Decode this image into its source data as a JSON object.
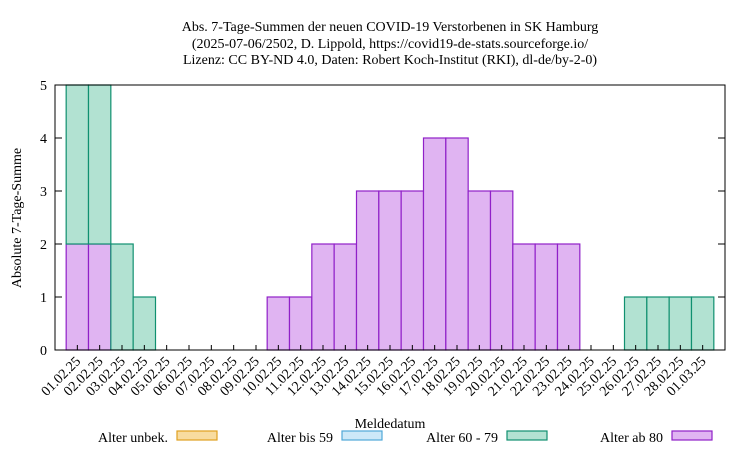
{
  "chart_data": {
    "type": "stacked-bar",
    "title": [
      "Abs. 7-Tage-Summen der neuen COVID-19 Verstorbenen in SK Hamburg",
      "(2025-07-06/2502, D. Lippold, https://covid19-de-stats.sourceforge.io/",
      "Lizenz: CC BY-ND 4.0, Daten: Robert Koch-Institut (RKI), dl-de/by-2-0)"
    ],
    "x_label": "Meldedatum",
    "y_label": "Absolute 7-Tage-Summe",
    "categories": [
      "01.02.25",
      "02.02.25",
      "03.02.25",
      "04.02.25",
      "05.02.25",
      "06.02.25",
      "07.02.25",
      "08.02.25",
      "09.02.25",
      "10.02.25",
      "11.02.25",
      "12.02.25",
      "13.02.25",
      "14.02.25",
      "15.02.25",
      "16.02.25",
      "17.02.25",
      "18.02.25",
      "19.02.25",
      "20.02.25",
      "21.02.25",
      "22.02.25",
      "23.02.25",
      "24.02.25",
      "25.02.25",
      "26.02.25",
      "27.02.25",
      "28.02.25",
      "01.03.25"
    ],
    "series": [
      {
        "name": "Alter ab 80",
        "color": "#e0b4f2",
        "edge": "#9020c8",
        "values": [
          2,
          2,
          0,
          0,
          0,
          0,
          0,
          0,
          0,
          1,
          1,
          2,
          2,
          3,
          3,
          3,
          4,
          4,
          3,
          3,
          2,
          2,
          2,
          0,
          0,
          0,
          0,
          0,
          0
        ]
      },
      {
        "name": "Alter 60 - 79",
        "color": "#b2e2d2",
        "edge": "#109070",
        "values": [
          3,
          3,
          2,
          1,
          0,
          0,
          0,
          0,
          0,
          0,
          0,
          0,
          0,
          0,
          0,
          0,
          0,
          0,
          0,
          0,
          0,
          0,
          0,
          0,
          0,
          1,
          1,
          1,
          1
        ]
      },
      {
        "name": "Alter bis 59",
        "color": "#cce8f8",
        "edge": "#50a8d8",
        "values": [
          0,
          0,
          0,
          0,
          0,
          0,
          0,
          0,
          0,
          0,
          0,
          0,
          0,
          0,
          0,
          0,
          0,
          0,
          0,
          0,
          0,
          0,
          0,
          0,
          0,
          0,
          0,
          0,
          0
        ]
      },
      {
        "name": "Alter unbek.",
        "color": "#f8dca0",
        "edge": "#e0a020",
        "values": [
          0,
          0,
          0,
          0,
          0,
          0,
          0,
          0,
          0,
          0,
          0,
          0,
          0,
          0,
          0,
          0,
          0,
          0,
          0,
          0,
          0,
          0,
          0,
          0,
          0,
          0,
          0,
          0,
          0
        ]
      }
    ],
    "legend_order": [
      3,
      2,
      1,
      0
    ],
    "ylim": [
      0,
      5
    ],
    "yticks": [
      0,
      1,
      2,
      3,
      4,
      5
    ]
  }
}
